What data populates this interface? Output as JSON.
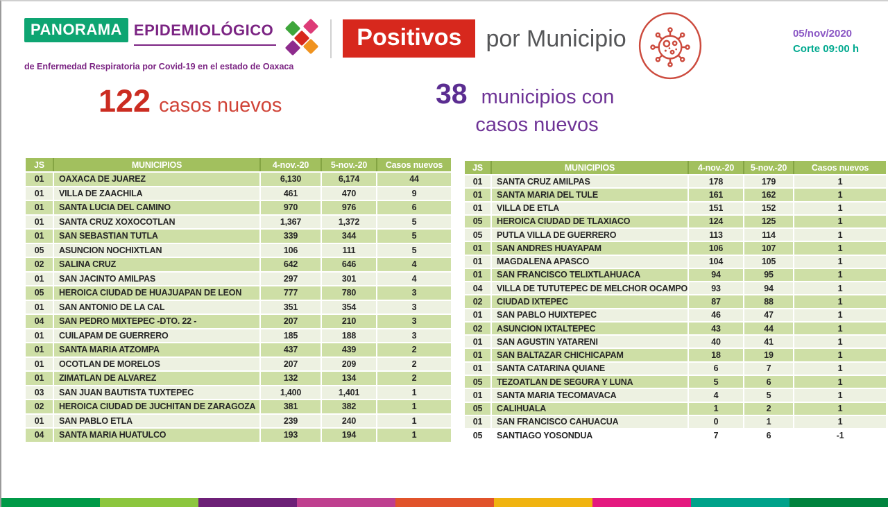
{
  "header": {
    "logo": {
      "panorama": "PANORAMA",
      "epidemiologico": "EPIDEMIOLÓGICO",
      "subtitle": "de Enfermedad Respiratoria por Covid-19 en el estado de Oaxaca"
    },
    "title_badge": "Positivos",
    "title_rest": "por Municipio",
    "date": "05/nov/2020",
    "cutoff": "Corte 09:00 h"
  },
  "stats": {
    "new_cases_number": "122",
    "new_cases_label": "casos nuevos",
    "municipalities_number": "38",
    "municipalities_label_line1": "municipios con",
    "municipalities_label_line2": "casos nuevos"
  },
  "table_headers": [
    "JS",
    "MUNICIPIOS",
    "4-nov.-20",
    "5-nov.-20",
    "Casos nuevos"
  ],
  "left_table": {
    "rows": [
      [
        "01",
        "OAXACA DE JUAREZ",
        "6,130",
        "6,174",
        "44"
      ],
      [
        "01",
        "VILLA DE ZAACHILA",
        "461",
        "470",
        "9"
      ],
      [
        "01",
        "SANTA LUCIA DEL CAMINO",
        "970",
        "976",
        "6"
      ],
      [
        "01",
        "SANTA CRUZ XOXOCOTLAN",
        "1,367",
        "1,372",
        "5"
      ],
      [
        "01",
        "SAN SEBASTIAN TUTLA",
        "339",
        "344",
        "5"
      ],
      [
        "05",
        "ASUNCION NOCHIXTLAN",
        "106",
        "111",
        "5"
      ],
      [
        "02",
        "SALINA CRUZ",
        "642",
        "646",
        "4"
      ],
      [
        "01",
        "SAN JACINTO AMILPAS",
        "297",
        "301",
        "4"
      ],
      [
        "05",
        "HEROICA CIUDAD DE HUAJUAPAN DE LEON",
        "777",
        "780",
        "3"
      ],
      [
        "01",
        "SAN ANTONIO DE LA CAL",
        "351",
        "354",
        "3"
      ],
      [
        "04",
        "SAN PEDRO MIXTEPEC -DTO. 22 -",
        "207",
        "210",
        "3"
      ],
      [
        "01",
        "CUILAPAM DE GUERRERO",
        "185",
        "188",
        "3"
      ],
      [
        "01",
        "SANTA MARIA ATZOMPA",
        "437",
        "439",
        "2"
      ],
      [
        "01",
        "OCOTLAN DE MORELOS",
        "207",
        "209",
        "2"
      ],
      [
        "01",
        "ZIMATLAN DE ALVAREZ",
        "132",
        "134",
        "2"
      ],
      [
        "03",
        "SAN JUAN BAUTISTA TUXTEPEC",
        "1,400",
        "1,401",
        "1"
      ],
      [
        "02",
        "HEROICA CIUDAD DE JUCHITAN DE ZARAGOZA",
        "381",
        "382",
        "1"
      ],
      [
        "01",
        "SAN PABLO ETLA",
        "239",
        "240",
        "1"
      ],
      [
        "04",
        "SANTA MARIA HUATULCO",
        "193",
        "194",
        "1"
      ]
    ]
  },
  "right_table": {
    "rows": [
      [
        "01",
        "SANTA CRUZ AMILPAS",
        "178",
        "179",
        "1"
      ],
      [
        "01",
        "SANTA MARIA DEL TULE",
        "161",
        "162",
        "1"
      ],
      [
        "01",
        "VILLA DE ETLA",
        "151",
        "152",
        "1"
      ],
      [
        "05",
        "HEROICA CIUDAD DE TLAXIACO",
        "124",
        "125",
        "1"
      ],
      [
        "05",
        "PUTLA VILLA DE GUERRERO",
        "113",
        "114",
        "1"
      ],
      [
        "01",
        "SAN ANDRES HUAYAPAM",
        "106",
        "107",
        "1"
      ],
      [
        "01",
        "MAGDALENA APASCO",
        "104",
        "105",
        "1"
      ],
      [
        "01",
        "SAN FRANCISCO TELIXTLAHUACA",
        "94",
        "95",
        "1"
      ],
      [
        "04",
        "VILLA DE TUTUTEPEC DE MELCHOR OCAMPO",
        "93",
        "94",
        "1"
      ],
      [
        "02",
        "CIUDAD IXTEPEC",
        "87",
        "88",
        "1"
      ],
      [
        "01",
        "SAN PABLO HUIXTEPEC",
        "46",
        "47",
        "1"
      ],
      [
        "02",
        "ASUNCION IXTALTEPEC",
        "43",
        "44",
        "1"
      ],
      [
        "01",
        "SAN AGUSTIN YATARENI",
        "40",
        "41",
        "1"
      ],
      [
        "01",
        "SAN BALTAZAR CHICHICAPAM",
        "18",
        "19",
        "1"
      ],
      [
        "01",
        "SANTA CATARINA QUIANE",
        "6",
        "7",
        "1"
      ],
      [
        "05",
        "TEZOATLAN DE SEGURA Y LUNA",
        "5",
        "6",
        "1"
      ],
      [
        "01",
        "SANTA MARIA TECOMAVACA",
        "4",
        "5",
        "1"
      ],
      [
        "05",
        "CALIHUALA",
        "1",
        "2",
        "1"
      ],
      [
        "01",
        "SAN FRANCISCO CAHUACUA",
        "0",
        "1",
        "1"
      ],
      [
        "05",
        "SANTIAGO YOSONDUA",
        "7",
        "6",
        "-1"
      ]
    ]
  },
  "colors": {
    "table_header_green": "#a2c05e",
    "row_sage": "#cedfa6",
    "row_light": "#edf1e1",
    "badge_red": "#d7281d",
    "panorama_green": "#0ea572",
    "brand_purple": "#7b2483",
    "stat_red": "#cb2c21",
    "stat_purple": "#5b2d91",
    "date_purple": "#8a56c4",
    "cutoff_teal": "#00a98f"
  },
  "footer": {
    "segment_colors": [
      "#009a47",
      "#8cc63e",
      "#6d2077",
      "#bf3f8f",
      "#e1532b",
      "#f0b310",
      "#e4197f",
      "#00a28a",
      "#00833e"
    ]
  }
}
